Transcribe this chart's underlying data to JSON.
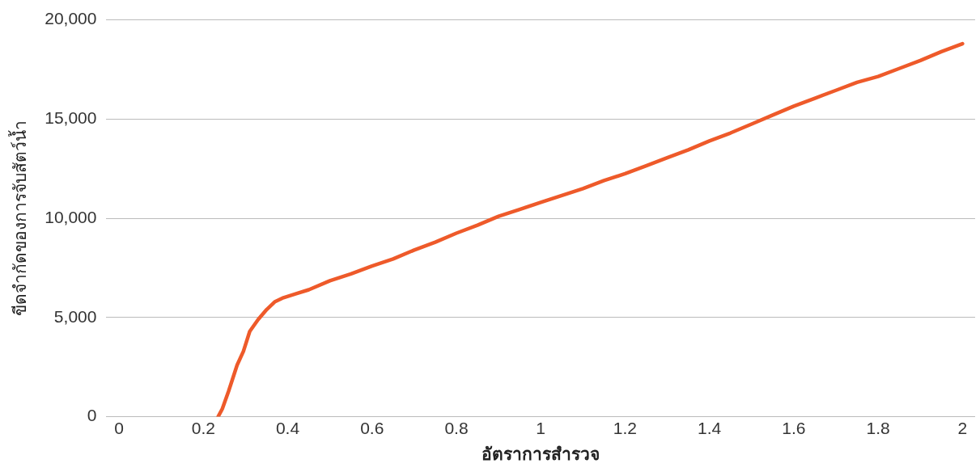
{
  "chart_data": {
    "type": "line",
    "xlabel": "อัตราการสำรวจ",
    "ylabel": "ขีดจำกัดของการจับสัตว์น้ำ",
    "xlim": [
      -0.03,
      2.03
    ],
    "xticks": [
      0,
      0.2,
      0.4,
      0.6,
      0.8,
      1,
      1.2,
      1.4,
      1.6,
      1.8,
      2
    ],
    "ylim": [
      0,
      20000
    ],
    "yticks": [
      {
        "value": 0,
        "label": "0"
      },
      {
        "value": 5000,
        "label": "5,000"
      },
      {
        "value": 10000,
        "label": "10,000"
      },
      {
        "value": 15000,
        "label": "15,000"
      },
      {
        "value": 20000,
        "label": "20,000"
      }
    ],
    "grid": "y",
    "legend": false,
    "marker": "none",
    "line_style": "solid",
    "series": [
      {
        "color": "#ee5a2a",
        "x": [
          0.235,
          0.245,
          0.26,
          0.28,
          0.295,
          0.31,
          0.33,
          0.35,
          0.37,
          0.39,
          0.42,
          0.45,
          0.5,
          0.55,
          0.6,
          0.65,
          0.7,
          0.75,
          0.8,
          0.85,
          0.9,
          0.95,
          1.0,
          1.05,
          1.1,
          1.15,
          1.2,
          1.25,
          1.3,
          1.35,
          1.4,
          1.45,
          1.5,
          1.55,
          1.6,
          1.65,
          1.7,
          1.75,
          1.8,
          1.85,
          1.9,
          1.95,
          2.0
        ],
        "values": [
          0,
          400,
          1300,
          2600,
          3300,
          4300,
          4900,
          5400,
          5800,
          6000,
          6200,
          6400,
          6850,
          7200,
          7600,
          7950,
          8400,
          8800,
          9250,
          9650,
          10100,
          10450,
          10800,
          11150,
          11500,
          11900,
          12250,
          12650,
          13050,
          13450,
          13900,
          14300,
          14750,
          15200,
          15650,
          16050,
          16450,
          16850,
          17150,
          17550,
          17950,
          18400,
          18800
        ]
      }
    ]
  }
}
